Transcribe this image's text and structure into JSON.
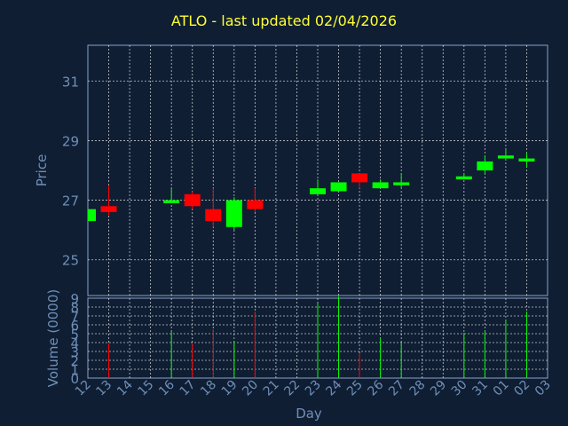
{
  "chart_data": {
    "type": "candlestick",
    "title": "ATLO - last updated 02/04/2026",
    "xlabel": "Day",
    "price_panel": {
      "ylabel": "Price",
      "ylim": [
        23.8,
        32.2
      ],
      "yticks": [
        25,
        27,
        29,
        31
      ]
    },
    "volume_panel": {
      "ylabel": "Volume (0000)",
      "ylim": [
        0,
        9
      ],
      "yticks": [
        0,
        1,
        2,
        3,
        4,
        5,
        6,
        7,
        8,
        9
      ]
    },
    "x_ticks": [
      "12",
      "13",
      "14",
      "15",
      "16",
      "17",
      "18",
      "19",
      "20",
      "21",
      "22",
      "23",
      "24",
      "25",
      "26",
      "27",
      "28",
      "29",
      "30",
      "31",
      "01",
      "02",
      "03"
    ],
    "grid": true,
    "colors": {
      "up": "#00ff00",
      "down": "#ff0000",
      "grid": "#ffffff",
      "axes": "#6f8fb8",
      "background": "#0f1e33",
      "title": "#ffff33"
    },
    "candles": [
      {
        "day": "12",
        "open": 26.3,
        "high": 26.7,
        "low": 26.3,
        "close": 26.7,
        "volume": 0
      },
      {
        "day": "13",
        "open": 26.8,
        "high": 27.5,
        "low": 26.5,
        "close": 26.6,
        "volume": 3.9
      },
      {
        "day": "16",
        "open": 26.9,
        "high": 27.4,
        "low": 26.9,
        "close": 27.0,
        "volume": 5.3
      },
      {
        "day": "17",
        "open": 27.2,
        "high": 27.3,
        "low": 26.7,
        "close": 26.8,
        "volume": 3.9
      },
      {
        "day": "18",
        "open": 26.7,
        "high": 27.4,
        "low": 26.1,
        "close": 26.3,
        "volume": 5.5
      },
      {
        "day": "19",
        "open": 26.1,
        "high": 27.1,
        "low": 26.0,
        "close": 27.0,
        "volume": 4.1
      },
      {
        "day": "20",
        "open": 27.0,
        "high": 27.4,
        "low": 26.6,
        "close": 26.7,
        "volume": 7.5
      },
      {
        "day": "23",
        "open": 27.2,
        "high": 27.7,
        "low": 27.2,
        "close": 27.4,
        "volume": 8.4
      },
      {
        "day": "24",
        "open": 27.3,
        "high": 27.6,
        "low": 27.3,
        "close": 27.6,
        "volume": 9.2
      },
      {
        "day": "25",
        "open": 27.9,
        "high": 27.9,
        "low": 27.4,
        "close": 27.6,
        "volume": 2.8
      },
      {
        "day": "26",
        "open": 27.4,
        "high": 27.7,
        "low": 27.4,
        "close": 27.6,
        "volume": 4.6
      },
      {
        "day": "27",
        "open": 27.5,
        "high": 27.9,
        "low": 27.4,
        "close": 27.6,
        "volume": 4.0
      },
      {
        "day": "30",
        "open": 27.7,
        "high": 27.9,
        "low": 27.7,
        "close": 27.8,
        "volume": 5.1
      },
      {
        "day": "31",
        "open": 28.0,
        "high": 28.5,
        "low": 27.9,
        "close": 28.3,
        "volume": 5.2
      },
      {
        "day": "01",
        "open": 28.4,
        "high": 28.7,
        "low": 28.4,
        "close": 28.5,
        "volume": 6.5
      },
      {
        "day": "02",
        "open": 28.3,
        "high": 28.6,
        "low": 28.1,
        "close": 28.4,
        "volume": 7.5
      }
    ]
  }
}
